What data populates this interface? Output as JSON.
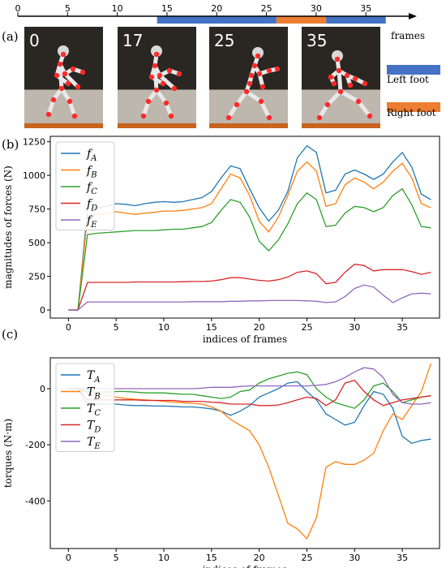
{
  "timeline": {
    "ticks": [
      0,
      5,
      10,
      15,
      20,
      25,
      30,
      35
    ],
    "axis_label": "frames",
    "segments": [
      {
        "start": 14,
        "end": 26,
        "color": "#4472c4"
      },
      {
        "start": 26,
        "end": 31,
        "color": "#ed7d31"
      },
      {
        "start": 31,
        "end": 37,
        "color": "#4472c4"
      }
    ]
  },
  "panel_a": {
    "label": "(a)",
    "frames": [
      {
        "label": "0"
      },
      {
        "label": "17"
      },
      {
        "label": "25"
      },
      {
        "label": "35"
      }
    ],
    "legend": [
      {
        "name": "Left foot",
        "color": "#4472c4"
      },
      {
        "name": "Right foot",
        "color": "#ed7d31"
      }
    ]
  },
  "chart_data": [
    {
      "panel": "(b)",
      "type": "line",
      "xlabel": "indices of frames",
      "ylabel": "magnitudes of forces (N)",
      "xlim": [
        -1.9,
        38.9
      ],
      "ylim": [
        -60,
        1290
      ],
      "xticks": [
        0,
        5,
        10,
        15,
        20,
        25,
        30,
        35
      ],
      "yticks": [
        0,
        250,
        500,
        750,
        1000,
        1250
      ],
      "legend_position": "upper-left",
      "x": [
        0,
        1,
        2,
        3,
        4,
        5,
        6,
        7,
        8,
        9,
        10,
        11,
        12,
        13,
        14,
        15,
        16,
        17,
        18,
        19,
        20,
        21,
        22,
        23,
        24,
        25,
        26,
        27,
        28,
        29,
        30,
        31,
        32,
        33,
        34,
        35,
        36,
        37,
        38
      ],
      "series": [
        {
          "name": "f",
          "sub": "A",
          "color": "#1f77b4",
          "values": [
            0,
            0,
            750,
            760,
            770,
            790,
            785,
            775,
            790,
            800,
            805,
            800,
            805,
            820,
            835,
            880,
            980,
            1070,
            1050,
            900,
            760,
            660,
            740,
            880,
            1130,
            1220,
            1170,
            870,
            890,
            1010,
            1040,
            1010,
            970,
            1010,
            1100,
            1170,
            1060,
            860,
            820
          ]
        },
        {
          "name": "f",
          "sub": "B",
          "color": "#ff7f0e",
          "values": [
            0,
            0,
            700,
            710,
            720,
            730,
            720,
            710,
            720,
            725,
            735,
            735,
            740,
            750,
            760,
            790,
            900,
            1010,
            980,
            850,
            660,
            580,
            690,
            850,
            1030,
            1100,
            1030,
            770,
            790,
            930,
            980,
            950,
            900,
            950,
            1030,
            1090,
            980,
            790,
            760
          ]
        },
        {
          "name": "f",
          "sub": "C",
          "color": "#2ca02c",
          "values": [
            0,
            0,
            560,
            570,
            575,
            580,
            585,
            590,
            590,
            590,
            595,
            600,
            600,
            610,
            620,
            650,
            740,
            820,
            800,
            690,
            510,
            440,
            520,
            640,
            790,
            870,
            820,
            620,
            630,
            720,
            770,
            760,
            730,
            760,
            850,
            900,
            780,
            620,
            610
          ]
        },
        {
          "name": "f",
          "sub": "D",
          "color": "#d62728",
          "values": [
            0,
            0,
            205,
            205,
            205,
            205,
            205,
            208,
            208,
            208,
            208,
            208,
            210,
            212,
            212,
            215,
            225,
            240,
            240,
            230,
            220,
            215,
            225,
            245,
            280,
            290,
            270,
            195,
            205,
            280,
            340,
            330,
            290,
            300,
            300,
            300,
            285,
            265,
            280
          ]
        },
        {
          "name": "f",
          "sub": "E",
          "color": "#9467bd",
          "values": [
            0,
            0,
            60,
            60,
            60,
            60,
            60,
            60,
            60,
            60,
            60,
            60,
            60,
            62,
            62,
            62,
            62,
            65,
            65,
            68,
            68,
            70,
            70,
            70,
            70,
            68,
            65,
            55,
            60,
            100,
            160,
            185,
            170,
            110,
            55,
            90,
            120,
            125,
            120
          ]
        }
      ]
    },
    {
      "panel": "(c)",
      "type": "line",
      "xlabel": "indices of frames",
      "ylabel": "torques (N·m)",
      "xlim": [
        -1.9,
        38.9
      ],
      "ylim": [
        -570,
        110
      ],
      "xticks": [
        0,
        5,
        10,
        15,
        20,
        25,
        30,
        35
      ],
      "yticks": [
        -400,
        -200,
        0
      ],
      "legend_position": "upper-left",
      "x": [
        0,
        1,
        2,
        3,
        4,
        5,
        6,
        7,
        8,
        9,
        10,
        11,
        12,
        13,
        14,
        15,
        16,
        17,
        18,
        19,
        20,
        21,
        22,
        23,
        24,
        25,
        26,
        27,
        28,
        29,
        30,
        31,
        32,
        33,
        34,
        35,
        36,
        37,
        38
      ],
      "series": [
        {
          "name": "T",
          "sub": "A",
          "color": "#1f77b4",
          "values": [
            0,
            0,
            -60,
            -55,
            -55,
            -55,
            -58,
            -60,
            -60,
            -62,
            -62,
            -63,
            -65,
            -65,
            -68,
            -72,
            -80,
            -95,
            -80,
            -60,
            -30,
            -15,
            0,
            20,
            25,
            -10,
            -40,
            -90,
            -110,
            -130,
            -120,
            -60,
            -10,
            -20,
            -70,
            -170,
            -195,
            -185,
            -180
          ]
        },
        {
          "name": "T",
          "sub": "B",
          "color": "#ff7f0e",
          "values": [
            0,
            0,
            -15,
            -20,
            -25,
            -30,
            -35,
            -38,
            -40,
            -42,
            -45,
            -48,
            -50,
            -52,
            -55,
            -65,
            -80,
            -110,
            -130,
            -150,
            -200,
            -280,
            -380,
            -480,
            -500,
            -535,
            -460,
            -280,
            -260,
            -270,
            -270,
            -255,
            -230,
            -150,
            -90,
            -110,
            -60,
            -10,
            90
          ]
        },
        {
          "name": "T",
          "sub": "C",
          "color": "#2ca02c",
          "values": [
            0,
            0,
            -10,
            -12,
            -12,
            -10,
            -10,
            -12,
            -15,
            -15,
            -15,
            -18,
            -20,
            -20,
            -25,
            -30,
            -35,
            -30,
            -10,
            -5,
            20,
            35,
            45,
            55,
            60,
            50,
            0,
            -30,
            -50,
            -60,
            -70,
            -40,
            10,
            20,
            -10,
            -50,
            -40,
            -30,
            -25
          ]
        },
        {
          "name": "T",
          "sub": "D",
          "color": "#d62728",
          "values": [
            0,
            0,
            -40,
            -40,
            -40,
            -40,
            -40,
            -40,
            -42,
            -42,
            -42,
            -42,
            -45,
            -45,
            -45,
            -48,
            -50,
            -55,
            -55,
            -55,
            -60,
            -60,
            -58,
            -50,
            -40,
            -30,
            -35,
            -60,
            -40,
            20,
            30,
            -10,
            -40,
            -60,
            -50,
            -40,
            -35,
            -30,
            -25
          ]
        },
        {
          "name": "T",
          "sub": "E",
          "color": "#9467bd",
          "values": [
            0,
            0,
            0,
            0,
            0,
            0,
            0,
            0,
            0,
            0,
            0,
            0,
            0,
            0,
            2,
            5,
            5,
            5,
            8,
            10,
            10,
            10,
            10,
            10,
            10,
            10,
            12,
            15,
            25,
            40,
            60,
            75,
            70,
            40,
            -20,
            -50,
            -55,
            -55,
            -50
          ]
        }
      ]
    }
  ]
}
